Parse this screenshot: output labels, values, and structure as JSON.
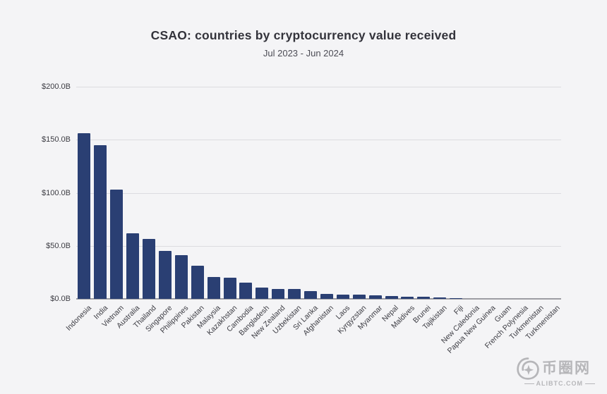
{
  "header": {
    "title": "CSAO: countries by cryptocurrency value received",
    "subtitle": "Jul 2023 - Jun 2024"
  },
  "chart_data": {
    "type": "bar",
    "title": "CSAO: countries by cryptocurrency value received",
    "subtitle": "Jul 2023 - Jun 2024",
    "categories": [
      "Indonesia",
      "India",
      "Vietnam",
      "Australia",
      "Thailand",
      "Singapore",
      "Philippines",
      "Pakistan",
      "Malaysia",
      "Kazakhstan",
      "Cambodia",
      "Bangladesh",
      "New Zealand",
      "Uzbekistan",
      "Sri Lanka",
      "Afghanistan",
      "Laos",
      "Kyrgyzstan",
      "Myanmar",
      "Nepal",
      "Maldives",
      "Brunei",
      "Tajikistan",
      "Fiji",
      "New Caledonia",
      "Papua New Guinea",
      "Guam",
      "French Polynesia",
      "Turkmenistan",
      "Turkmenistan"
    ],
    "values": [
      156,
      145,
      103,
      61.5,
      56.5,
      45,
      41.5,
      31,
      20.5,
      20,
      15.5,
      10.5,
      9.5,
      9,
      7.5,
      4.5,
      4,
      3.8,
      3.2,
      2.6,
      2.3,
      1.7,
      1.2,
      0.5,
      0.3,
      0.2,
      0.15,
      0.1,
      0.05,
      0.03
    ],
    "value_unit": "billion USD",
    "xlabel": "",
    "ylabel": "",
    "ylim": [
      0,
      200
    ],
    "ytick_values": [
      0,
      50,
      100,
      150,
      200
    ],
    "ytick_labels": [
      "$0.0B",
      "$50.0B",
      "$100.0B",
      "$150.0B",
      "$200.0B"
    ],
    "grid": true,
    "legend": false,
    "bar_color": "#2a3f73",
    "background_color": "#f4f4f6"
  },
  "watermark": {
    "logo_text": "币圈网",
    "site": "ALIBTC.COM"
  }
}
